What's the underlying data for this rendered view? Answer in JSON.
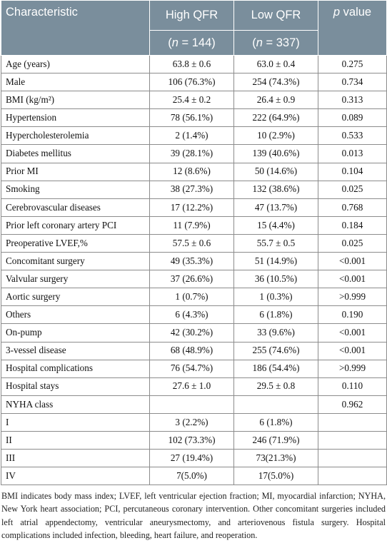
{
  "header": {
    "characteristic": "Characteristic",
    "high_qfr": "High QFR",
    "low_qfr": "Low QFR",
    "p_letter": "p",
    "p_rest": " value",
    "high_n_open": "(",
    "high_n_var": "n",
    "high_n_rest": " = 144)",
    "low_n_open": "(",
    "low_n_var": "n",
    "low_n_rest": " = 337)"
  },
  "rows": [
    {
      "label": "Age (years)",
      "high": "63.8 ± 0.6",
      "low": "63.0 ± 0.4",
      "p": "0.275"
    },
    {
      "label": "Male",
      "high": "106 (76.3%)",
      "low": "254 (74.3%)",
      "p": "0.734"
    },
    {
      "label": "BMI (kg/m²)",
      "high": "25.4 ± 0.2",
      "low": "26.4 ± 0.9",
      "p": "0.313"
    },
    {
      "label": "Hypertension",
      "high": "78 (56.1%)",
      "low": "222 (64.9%)",
      "p": "0.089"
    },
    {
      "label": "Hypercholesterolemia",
      "high": "2 (1.4%)",
      "low": "10 (2.9%)",
      "p": "0.533"
    },
    {
      "label": "Diabetes mellitus",
      "high": "39 (28.1%)",
      "low": "139 (40.6%)",
      "p": "0.013"
    },
    {
      "label": "Prior MI",
      "high": "12 (8.6%)",
      "low": "50 (14.6%)",
      "p": "0.104"
    },
    {
      "label": "Smoking",
      "high": "38 (27.3%)",
      "low": "132 (38.6%)",
      "p": "0.025"
    },
    {
      "label": "Cerebrovascular diseases",
      "high": "17 (12.2%)",
      "low": "47 (13.7%)",
      "p": "0.768"
    },
    {
      "label": "Prior left coronary artery PCI",
      "high": "11 (7.9%)",
      "low": "15 (4.4%)",
      "p": "0.184"
    },
    {
      "label": "Preoperative LVEF,%",
      "high": "57.5 ± 0.6",
      "low": "55.7 ± 0.5",
      "p": "0.025"
    },
    {
      "label": "Concomitant surgery",
      "high": "49 (35.3%)",
      "low": "51 (14.9%)",
      "p": "<0.001"
    },
    {
      "label": "Valvular surgery",
      "high": "37 (26.6%)",
      "low": "36 (10.5%)",
      "p": "<0.001"
    },
    {
      "label": "Aortic surgery",
      "high": "1 (0.7%)",
      "low": "1 (0.3%)",
      "p": ">0.999"
    },
    {
      "label": "Others",
      "high": "6 (4.3%)",
      "low": "6 (1.8%)",
      "p": "0.190"
    },
    {
      "label": "On-pump",
      "high": "42 (30.2%)",
      "low": "33 (9.6%)",
      "p": "<0.001"
    },
    {
      "label": "3-vessel disease",
      "high": "68 (48.9%)",
      "low": "255 (74.6%)",
      "p": "<0.001"
    },
    {
      "label": "Hospital complications",
      "high": "76 (54.7%)",
      "low": "186 (54.4%)",
      "p": ">0.999"
    },
    {
      "label": "Hospital stays",
      "high": "27.6 ± 1.0",
      "low": "29.5 ± 0.8",
      "p": "0.110"
    },
    {
      "label": "NYHA class",
      "high": "",
      "low": "",
      "p": "0.962"
    },
    {
      "label": "I",
      "high": "3 (2.2%)",
      "low": "6 (1.8%)",
      "p": ""
    },
    {
      "label": "II",
      "high": "102 (73.3%)",
      "low": "246 (71.9%)",
      "p": ""
    },
    {
      "label": "III",
      "high": "27 (19.4%)",
      "low": "73(21.3%)",
      "p": ""
    },
    {
      "label": "IV",
      "high": "7(5.0%)",
      "low": "17(5.0%)",
      "p": ""
    }
  ],
  "footnote": "BMI indicates body mass index; LVEF, left ventricular ejection fraction; MI, myocardial infarction; NYHA, New York heart association; PCI, percutaneous coronary intervention. Other concomitant surgeries included left atrial appendectomy, ventricular aneurysmectomy, and arteriovenous fistula surgery. Hospital complications included infection, bleeding, heart failure, and reoperation.",
  "colors": {
    "header_bg": "#7a8e9c",
    "header_text": "#ffffff",
    "grid": "#8c8c8c"
  }
}
